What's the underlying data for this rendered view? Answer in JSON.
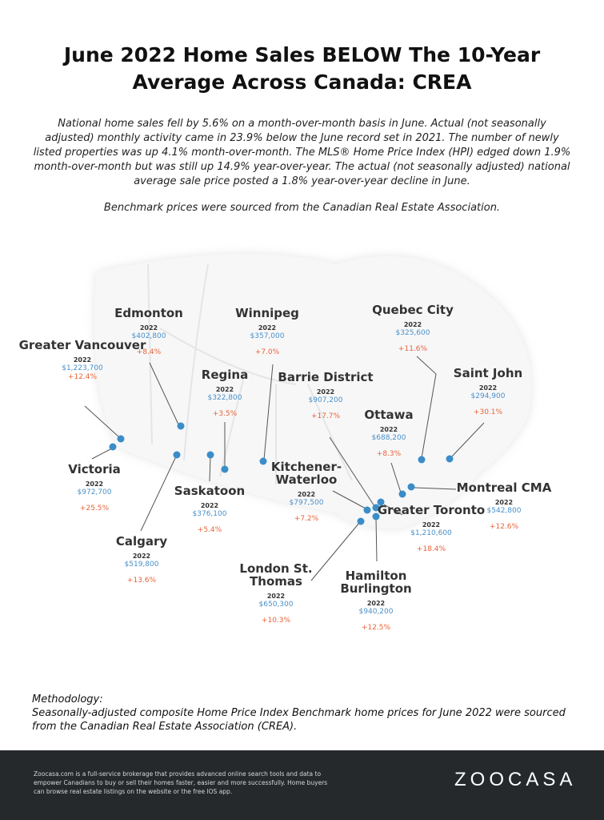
{
  "title": "June 2022 Home Sales BELOW The 10-Year Average Across Canada: CREA",
  "intro": "National home sales fell by 5.6% on a month-over-month basis in June. Actual (not seasonally adjusted) monthly activity came in 23.9% below the June record set in 2021. The number of newly listed properties was up 4.1% month-over-month. The MLS® Home Price Index (HPI) edged down 1.9% month-over-month but was still up 14.9% year-over-year. The actual (not seasonally adjusted) national average sale price posted a 1.8% year-over-year decline in June.",
  "source": "Benchmark prices were sourced from the Canadian Real Estate Association.",
  "colors": {
    "price": "#4a90c8",
    "change": "#e8643a",
    "dot": "#3a8dc8",
    "footer": "#25292c"
  },
  "cities": [
    {
      "name": "Edmonton",
      "year": "2022",
      "price": "$402,800",
      "change": "+8.4%"
    },
    {
      "name": "Greater Vancouver",
      "year": "2022",
      "price": "$1,223,700",
      "change": "+12.4%"
    },
    {
      "name": "Victoria",
      "year": "2022",
      "price": "$972,700",
      "change": "+25.5%"
    },
    {
      "name": "Winnipeg",
      "year": "2022",
      "price": "$357,000",
      "change": "+7.0%"
    },
    {
      "name": "Regina",
      "year": "2022",
      "price": "$322,800",
      "change": "+3.5%"
    },
    {
      "name": "Saskatoon",
      "year": "2022",
      "price": "$376,100",
      "change": "+5.4%"
    },
    {
      "name": "Calgary",
      "year": "2022",
      "price": "$519,800",
      "change": "+13.6%"
    },
    {
      "name": "Barrie District",
      "year": "2022",
      "price": "$907,200",
      "change": "+17.7%"
    },
    {
      "name": "Quebec City",
      "year": "2022",
      "price": "$325,600",
      "change": "+11.6%"
    },
    {
      "name": "Saint John",
      "year": "2022",
      "price": "$294,900",
      "change": "+30.1%"
    },
    {
      "name": "Ottawa",
      "year": "2022",
      "price": "$688,200",
      "change": "+8.3%"
    },
    {
      "name": "Montreal CMA",
      "year": "2022",
      "price": "$542,800",
      "change": "+12.6%"
    },
    {
      "name": "Kitchener-Waterloo",
      "year": "2022",
      "price": "$797,500",
      "change": "+7.2%"
    },
    {
      "name": "Greater Toronto",
      "year": "2022",
      "price": "$1,210,600",
      "change": "+18.4%"
    },
    {
      "name": "Hamilton Burlington",
      "year": "2022",
      "price": "$940,200",
      "change": "+12.5%"
    },
    {
      "name": "London St. Thomas",
      "year": "2022",
      "price": "$650,300",
      "change": "+10.3%"
    }
  ],
  "methodology": {
    "heading": "Methodology:",
    "text": "Seasonally-adjusted composite Home Price Index Benchmark home prices for June 2022 were sourced from the Canadian Real Estate Association (CREA)."
  },
  "footer": {
    "about": "Zoocasa.com is a full-service brokerage that provides advanced online search tools and data to empower Canadians to buy or sell their homes faster, easier and more successfully. Home buyers can browse real estate listings on the website or the free IOS app.",
    "logo": "ZOOCASA"
  }
}
